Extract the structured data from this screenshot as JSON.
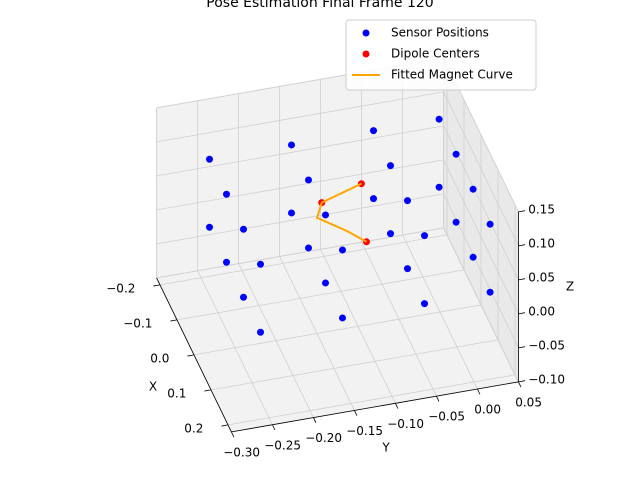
{
  "chart_data": {
    "type": "scatter3d",
    "title": "Pose Estimation Final Frame 120",
    "xlabel": "X",
    "ylabel": "Y",
    "zlabel": "Z",
    "xlim": [
      -0.22,
      0.22
    ],
    "ylim": [
      -0.3,
      0.05
    ],
    "zlim": [
      -0.1,
      0.15
    ],
    "xticks": [
      {
        "value": -0.2,
        "label": "−0.2"
      },
      {
        "value": -0.1,
        "label": "−0.1"
      },
      {
        "value": 0,
        "label": "0.0"
      },
      0.1,
      0.2
    ],
    "yticks": [
      {
        "value": -0.3,
        "label": "−0.30"
      },
      {
        "value": -0.25,
        "label": "−0.25"
      },
      {
        "value": -0.2,
        "label": "−0.20"
      },
      {
        "value": -0.15,
        "label": "−0.15"
      },
      {
        "value": -0.1,
        "label": "−0.10"
      },
      {
        "value": -0.05,
        "label": "−0.05"
      },
      {
        "value": 0,
        "label": "0.00"
      },
      0.05
    ],
    "zticks": [
      {
        "value": -0.1,
        "label": "−0.10"
      },
      {
        "value": -0.05,
        "label": "−0.05"
      },
      {
        "value": 0,
        "label": "0.00"
      },
      0.05,
      {
        "value": 0.1,
        "label": "0.10"
      },
      0.15
    ],
    "grid": true,
    "legend": "upper right",
    "series": [
      {
        "name": "Sensor Positions",
        "kind": "scatter",
        "color": "#0000ff",
        "x": [
          -0.15,
          -0.15,
          -0.15,
          -0.15,
          -0.05,
          -0.05,
          -0.05,
          -0.05,
          0.05,
          0.05,
          0.05,
          0.05,
          0.15,
          0.15,
          0.15,
          0.15,
          -0.15,
          -0.15,
          -0.15,
          -0.15,
          -0.05,
          -0.05,
          -0.05,
          -0.05,
          0.05,
          0.05,
          0.05,
          0.05,
          0.15,
          0.15,
          0.15,
          0.15
        ],
        "y": [
          -0.25,
          -0.15,
          -0.05,
          0.03,
          -0.25,
          -0.15,
          -0.05,
          0.03,
          -0.25,
          -0.15,
          -0.05,
          0.03,
          -0.25,
          -0.15,
          -0.05,
          0.03,
          -0.25,
          -0.15,
          -0.05,
          0.03,
          -0.25,
          -0.15,
          -0.05,
          0.03,
          -0.25,
          -0.15,
          -0.05,
          0.03,
          -0.25,
          -0.15,
          -0.05,
          0.03
        ],
        "z": [
          0,
          0,
          0,
          0,
          0,
          0,
          0,
          0,
          0,
          0,
          0,
          0,
          0,
          0,
          0,
          0,
          0.1,
          0.1,
          0.1,
          0.1,
          0.1,
          0.1,
          0.1,
          0.1,
          0.1,
          0.1,
          0.1,
          0.1,
          0.1,
          0.1,
          0.1,
          0.1
        ]
      },
      {
        "name": "Dipole Centers",
        "kind": "scatter",
        "color": "#ff0000",
        "x": [
          0.02,
          -0.02,
          0.05
        ],
        "y": [
          -0.1,
          -0.14,
          -0.1
        ],
        "z": [
          0.12,
          0.08,
          0.05
        ]
      },
      {
        "name": "Fitted Magnet Curve",
        "kind": "line",
        "color": "#ffa500",
        "x": [
          0.05,
          0.03,
          0.0,
          -0.02,
          0.0,
          0.02
        ],
        "y": [
          -0.1,
          -0.12,
          -0.15,
          -0.14,
          -0.12,
          -0.1
        ],
        "z": [
          0.05,
          0.06,
          0.07,
          0.08,
          0.1,
          0.12
        ]
      }
    ]
  }
}
